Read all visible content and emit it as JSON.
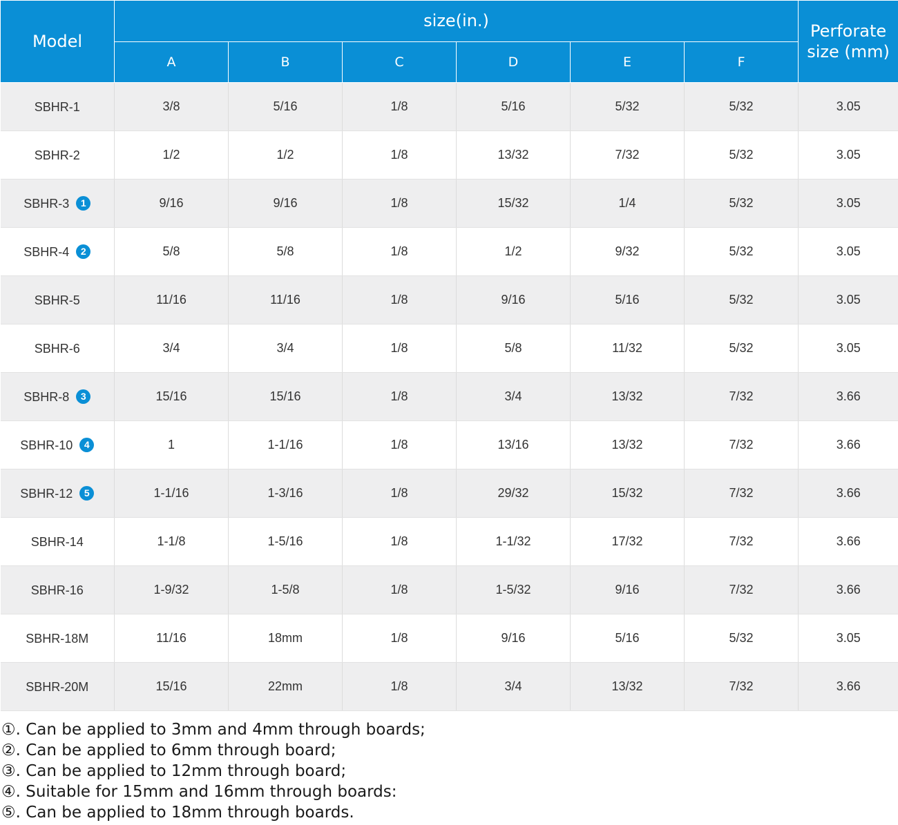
{
  "header": {
    "model": "Model",
    "size_group": "size(in.)",
    "perforate": "Perforate size (mm)",
    "columns": [
      "A",
      "B",
      "C",
      "D",
      "E",
      "F"
    ]
  },
  "rows": [
    {
      "model": "SBHR-1",
      "badge": "",
      "cells": [
        "3/8",
        "5/16",
        "1/8",
        "5/16",
        "5/32",
        "5/32"
      ],
      "perforate": "3.05"
    },
    {
      "model": "SBHR-2",
      "badge": "",
      "cells": [
        "1/2",
        "1/2",
        "1/8",
        "13/32",
        "7/32",
        "5/32"
      ],
      "perforate": "3.05"
    },
    {
      "model": "SBHR-3",
      "badge": "1",
      "cells": [
        "9/16",
        "9/16",
        "1/8",
        "15/32",
        "1/4",
        "5/32"
      ],
      "perforate": "3.05"
    },
    {
      "model": "SBHR-4",
      "badge": "2",
      "cells": [
        "5/8",
        "5/8",
        "1/8",
        "1/2",
        "9/32",
        "5/32"
      ],
      "perforate": "3.05"
    },
    {
      "model": "SBHR-5",
      "badge": "",
      "cells": [
        "11/16",
        "11/16",
        "1/8",
        "9/16",
        "5/16",
        "5/32"
      ],
      "perforate": "3.05"
    },
    {
      "model": "SBHR-6",
      "badge": "",
      "cells": [
        "3/4",
        "3/4",
        "1/8",
        "5/8",
        "11/32",
        "5/32"
      ],
      "perforate": "3.05"
    },
    {
      "model": "SBHR-8",
      "badge": "3",
      "cells": [
        "15/16",
        "15/16",
        "1/8",
        "3/4",
        "13/32",
        "7/32"
      ],
      "perforate": "3.66"
    },
    {
      "model": "SBHR-10",
      "badge": "4",
      "cells": [
        "1",
        "1-1/16",
        "1/8",
        "13/16",
        "13/32",
        "7/32"
      ],
      "perforate": "3.66"
    },
    {
      "model": "SBHR-12",
      "badge": "5",
      "cells": [
        "1-1/16",
        "1-3/16",
        "1/8",
        "29/32",
        "15/32",
        "7/32"
      ],
      "perforate": "3.66"
    },
    {
      "model": "SBHR-14",
      "badge": "",
      "cells": [
        "1-1/8",
        "1-5/16",
        "1/8",
        "1-1/32",
        "17/32",
        "7/32"
      ],
      "perforate": "3.66"
    },
    {
      "model": "SBHR-16",
      "badge": "",
      "cells": [
        "1-9/32",
        "1-5/8",
        "1/8",
        "1-5/32",
        "9/16",
        "7/32"
      ],
      "perforate": "3.66"
    },
    {
      "model": "SBHR-18M",
      "badge": "",
      "cells": [
        "11/16",
        "18mm",
        "1/8",
        "9/16",
        "5/16",
        "5/32"
      ],
      "perforate": "3.05"
    },
    {
      "model": "SBHR-20M",
      "badge": "",
      "cells": [
        "15/16",
        "22mm",
        "1/8",
        "3/4",
        "13/32",
        "7/32"
      ],
      "perforate": "3.66"
    }
  ],
  "notes": [
    "①. Can be applied to 3mm and 4mm through boards;",
    "②. Can be applied to 6mm through board;",
    "③. Can be applied to 12mm through board;",
    "④. Suitable for 15mm and 16mm through boards:",
    "⑤. Can be applied to 18mm through boards."
  ],
  "colors": {
    "header_bg": "#0a8fd6",
    "row_shade": "#eeeeef",
    "badge": "#0a8fd6"
  }
}
